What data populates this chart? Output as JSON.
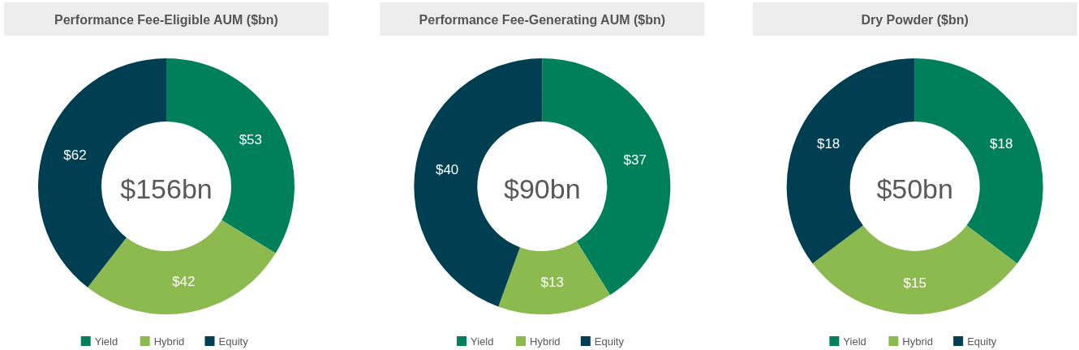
{
  "chart_data": [
    {
      "type": "donut",
      "title": "Performance Fee-Eligible AUM ($bn)",
      "categories": [
        "Yield",
        "Hybrid",
        "Equity"
      ],
      "values": [
        53,
        42,
        62
      ],
      "value_labels": [
        "$53",
        "$42",
        "$62"
      ],
      "colors": [
        "#00805a",
        "#8cba4f",
        "#003e51"
      ],
      "annotations": [
        "$156bn"
      ],
      "legend": "bottom"
    },
    {
      "type": "donut",
      "title": "Performance Fee-Generating AUM ($bn)",
      "categories": [
        "Yield",
        "Hybrid",
        "Equity"
      ],
      "values": [
        37,
        13,
        40
      ],
      "value_labels": [
        "$37",
        "$13",
        "$40"
      ],
      "colors": [
        "#00805a",
        "#8cba4f",
        "#003e51"
      ],
      "annotations": [
        "$90bn"
      ],
      "legend": "bottom"
    },
    {
      "type": "donut",
      "title": "Dry Powder ($bn)",
      "categories": [
        "Yield",
        "Hybrid",
        "Equity"
      ],
      "values": [
        18,
        15,
        18
      ],
      "value_labels": [
        "$18",
        "$15",
        "$18"
      ],
      "colors": [
        "#00805a",
        "#8cba4f",
        "#003e51"
      ],
      "annotations": [
        "$50bn"
      ],
      "legend": "bottom"
    }
  ]
}
